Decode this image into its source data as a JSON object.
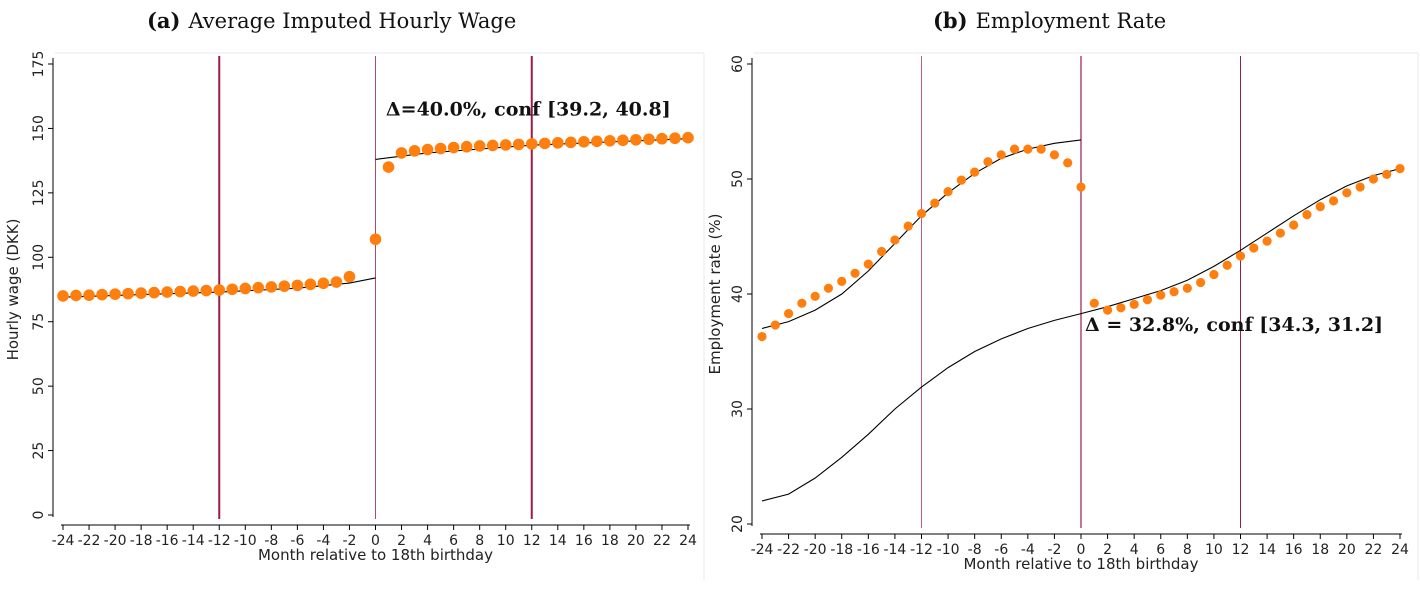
{
  "panels": [
    {
      "tag": "(a)",
      "title": "Average Imputed Hourly Wage"
    },
    {
      "tag": "(b)",
      "title": "Employment Rate"
    }
  ],
  "colors": {
    "marker": "#ff7f0e",
    "vline": "#9b1b45",
    "fit": "#000000",
    "axis": "#000000"
  },
  "chart_data": [
    {
      "type": "scatter",
      "title": "Average Imputed Hourly Wage",
      "xlabel": "Month relative to 18th birthday",
      "ylabel": "Hourly wage (DKK)",
      "xlim": [
        -24,
        24
      ],
      "ylim": [
        0,
        175
      ],
      "xticks": [
        -24,
        -22,
        -20,
        -18,
        -16,
        -14,
        -12,
        -10,
        -8,
        -6,
        -4,
        -2,
        0,
        2,
        4,
        6,
        8,
        10,
        12,
        14,
        16,
        18,
        20,
        22,
        24
      ],
      "yticks": [
        0,
        25,
        50,
        75,
        100,
        125,
        150,
        175
      ],
      "vlines": [
        -12,
        0,
        12
      ],
      "annotation": {
        "text": "Δ=40.0%, conf [39.2, 40.8]",
        "x": 0.8,
        "y": 155
      },
      "series": [
        {
          "x": [
            -24,
            -23,
            -22,
            -21,
            -20,
            -19,
            -18,
            -17,
            -16,
            -15,
            -14,
            -13,
            -12,
            -11,
            -10,
            -9,
            -8,
            -7,
            -6,
            -5,
            -4,
            -3,
            -2,
            -1,
            0,
            1,
            2,
            3,
            4,
            5,
            6,
            7,
            8,
            9,
            10,
            11,
            12,
            13,
            14,
            15,
            16,
            17,
            18,
            19,
            20,
            21,
            22,
            23,
            24
          ],
          "y": [
            85,
            85.2,
            85.3,
            85.5,
            85.7,
            85.9,
            86.1,
            86.3,
            86.5,
            86.7,
            86.9,
            87.1,
            87.3,
            87.6,
            87.9,
            88.2,
            88.5,
            88.8,
            89.1,
            89.5,
            89.9,
            90.4,
            92.5,
            null,
            107,
            135,
            140.5,
            141.3,
            141.8,
            142.2,
            142.6,
            142.9,
            143.2,
            143.4,
            143.6,
            143.8,
            144,
            144.2,
            144.4,
            144.6,
            144.8,
            145,
            145.2,
            145.4,
            145.6,
            145.8,
            146,
            146.2,
            146.4
          ]
        }
      ],
      "fit_lines": [
        {
          "x": [
            -24,
            -12,
            -6,
            -2,
            0
          ],
          "y": [
            84.5,
            86.5,
            88,
            90,
            92
          ]
        },
        {
          "x": [
            0,
            4,
            12,
            24
          ],
          "y": [
            138,
            140.5,
            143.5,
            146
          ]
        }
      ]
    },
    {
      "type": "scatter",
      "title": "Employment Rate",
      "xlabel": "Month relative to 18th birthday",
      "ylabel": "Employment rate (%)",
      "xlim": [
        -24,
        24
      ],
      "ylim": [
        20,
        60
      ],
      "xticks": [
        -24,
        -22,
        -20,
        -18,
        -16,
        -14,
        -12,
        -10,
        -8,
        -6,
        -4,
        -2,
        0,
        2,
        4,
        6,
        8,
        10,
        12,
        14,
        16,
        18,
        20,
        22,
        24
      ],
      "yticks": [
        20,
        30,
        40,
        50,
        60
      ],
      "vlines": [
        -12,
        0,
        12
      ],
      "annotation": {
        "text": "Δ = 32.8%, conf [34.3, 31.2]",
        "x": 0.3,
        "y": 36.8
      },
      "series": [
        {
          "x": [
            -24,
            -23,
            -22,
            -21,
            -20,
            -19,
            -18,
            -17,
            -16,
            -15,
            -14,
            -13,
            -12,
            -11,
            -10,
            -9,
            -8,
            -7,
            -6,
            -5,
            -4,
            -3,
            -2,
            -1,
            0,
            1,
            2,
            3,
            4,
            5,
            6,
            7,
            8,
            9,
            10,
            11,
            12,
            13,
            14,
            15,
            16,
            17,
            18,
            19,
            20,
            21,
            22,
            23,
            24
          ],
          "y": [
            36.3,
            37.3,
            38.3,
            39.2,
            39.8,
            40.5,
            41.1,
            41.8,
            42.6,
            43.7,
            44.7,
            45.9,
            47,
            47.9,
            48.9,
            49.9,
            50.6,
            51.5,
            52.1,
            52.6,
            52.6,
            52.6,
            52.1,
            51.4,
            49.3,
            39.2,
            38.6,
            38.8,
            39.1,
            39.5,
            39.9,
            40.2,
            40.5,
            41,
            41.7,
            42.5,
            43.3,
            44,
            44.6,
            45.3,
            46,
            46.9,
            47.6,
            48.1,
            48.8,
            49.3,
            50,
            50.4,
            50.9
          ]
        }
      ],
      "fit_lines": [
        {
          "x": [
            -24,
            -22,
            -20,
            -18,
            -16,
            -14,
            -12,
            -10,
            -8,
            -6,
            -4,
            -2,
            0
          ],
          "y": [
            37,
            37.6,
            38.6,
            40,
            42,
            44.4,
            46.8,
            48.8,
            50.5,
            51.8,
            52.6,
            53.1,
            53.4
          ]
        },
        {
          "x": [
            -24,
            -22,
            -20,
            -18,
            -16,
            -14,
            -12,
            -10,
            -8,
            -6,
            -4,
            -2,
            0
          ],
          "y": [
            22,
            22.6,
            24,
            25.8,
            27.8,
            30,
            31.9,
            33.6,
            35,
            36.1,
            37,
            37.7,
            38.3
          ]
        },
        {
          "x": [
            0,
            2,
            4,
            6,
            8,
            10,
            12,
            14,
            16,
            18,
            20,
            22,
            24
          ],
          "y": [
            38.3,
            38.9,
            39.6,
            40.3,
            41.2,
            42.4,
            43.8,
            45.3,
            46.8,
            48.2,
            49.4,
            50.3,
            50.9
          ]
        }
      ]
    }
  ]
}
